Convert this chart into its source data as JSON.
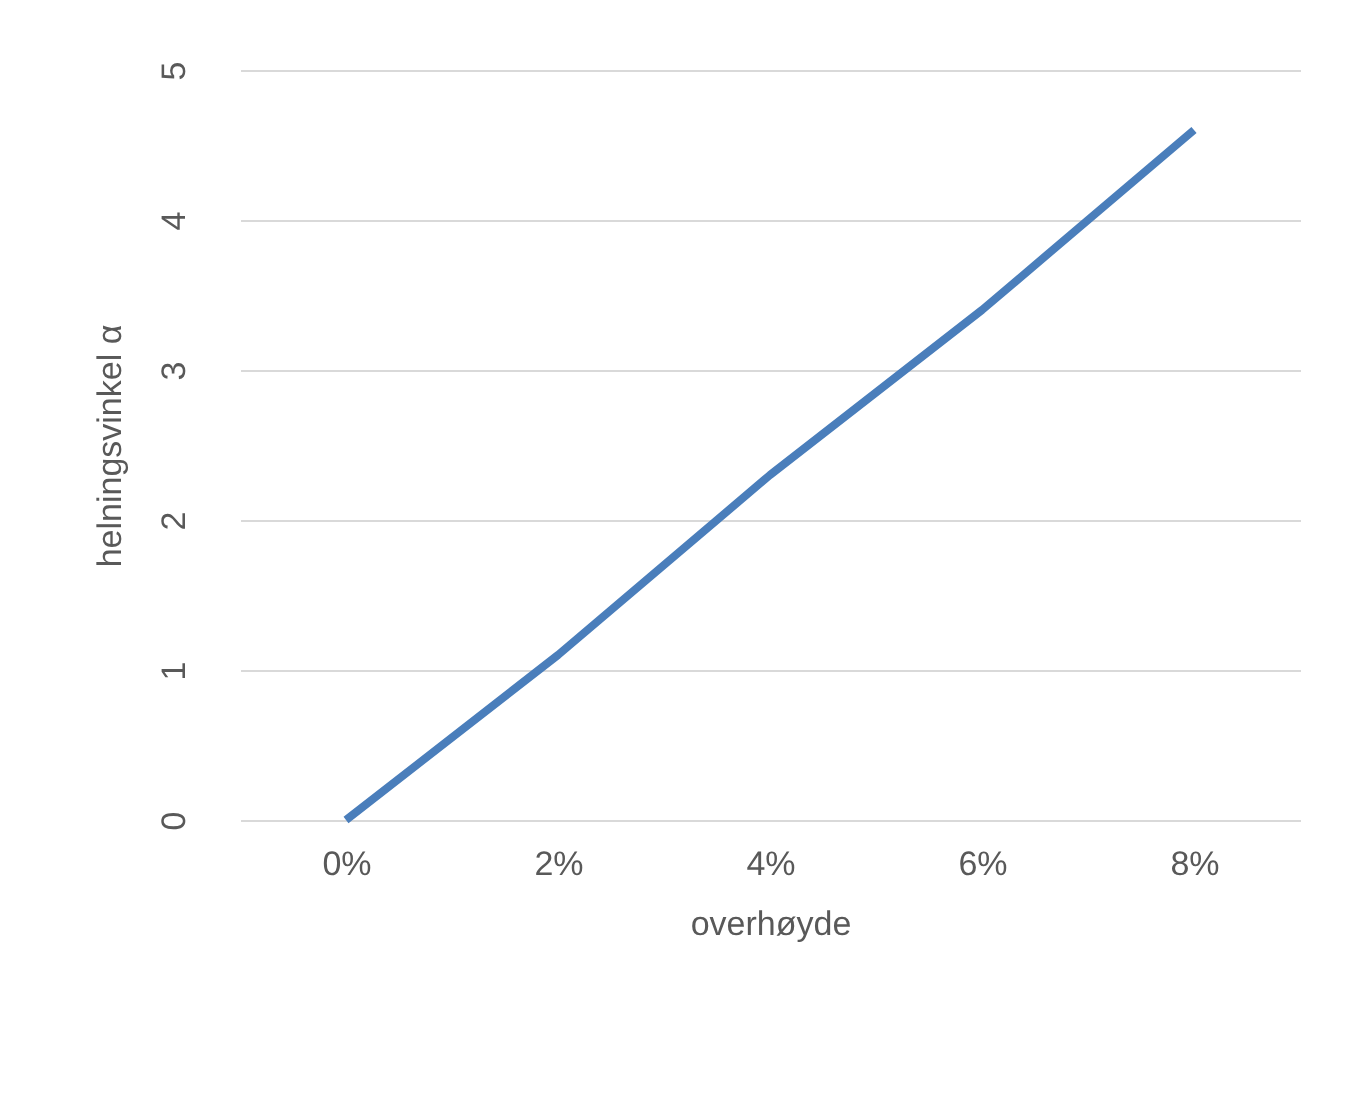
{
  "chart_data": {
    "type": "line",
    "xlabel": "overhøyde",
    "ylabel": "helningsvinkel α",
    "x": [
      0,
      2,
      4,
      6,
      8
    ],
    "series": [
      {
        "color": "#4a7ebb",
        "values": [
          0,
          1.1,
          2.3,
          3.4,
          4.6
        ]
      }
    ],
    "xlim": [
      -1,
      9
    ],
    "xticks": [
      {
        "value": 0,
        "label": "0%"
      },
      {
        "value": 2,
        "label": "2%"
      },
      {
        "value": 4,
        "label": "4%"
      },
      {
        "value": 6,
        "label": "6%"
      },
      {
        "value": 8,
        "label": "8%"
      }
    ],
    "ylim": [
      0,
      5
    ],
    "yticks": [
      0,
      1,
      2,
      3,
      4,
      5
    ],
    "grid": "y",
    "legend": false,
    "marker": "none",
    "line_style": "solid"
  }
}
